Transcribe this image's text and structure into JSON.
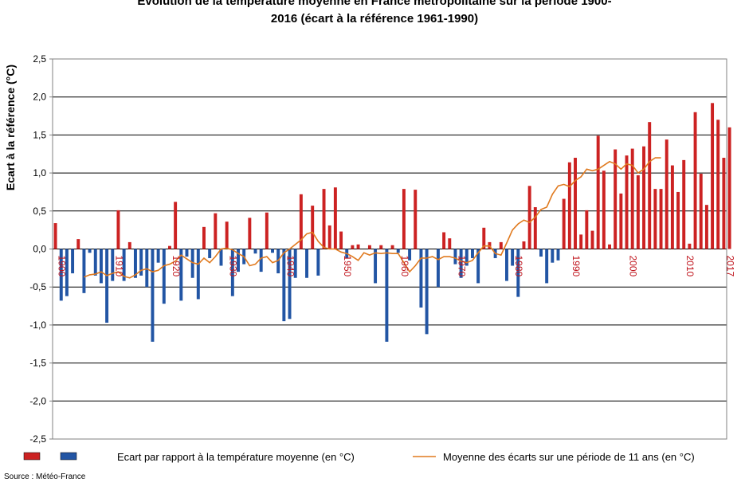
{
  "chart_data": {
    "type": "bar",
    "title_line1": "Evolution de la température moyenne en France métropolitaine  sur la période 1900-",
    "title_line2": "2016 (écart à la référence 1961-1990)",
    "ylabel": "Ecart à la référence (°C)",
    "ylim": [
      -2.5,
      2.5
    ],
    "yticks": [
      "2,5",
      "2,0",
      "1,5",
      "1,0",
      "0,5",
      "0,0",
      "-0,5",
      "-1,0",
      "-1,5",
      "-2,0",
      "-2,5"
    ],
    "ytick_values": [
      2.5,
      2.0,
      1.5,
      1.0,
      0.5,
      0.0,
      -0.5,
      -1.0,
      -1.5,
      -2.0,
      -2.5
    ],
    "grid": true,
    "x_start": 1900,
    "x_end": 2017,
    "xticks": [
      "1900",
      "1910",
      "1920",
      "1930",
      "1940",
      "1950",
      "1960",
      "1970",
      "1980",
      "1990",
      "2000",
      "2010",
      "2017"
    ],
    "xtick_years": [
      1900,
      1910,
      1920,
      1930,
      1940,
      1950,
      1960,
      1970,
      1980,
      1990,
      2000,
      2010,
      2017
    ],
    "xtick_color": "#c0141c",
    "positive_color": "#cc2222",
    "negative_color": "#2255a4",
    "line_color": "#e07a1f",
    "series": [
      {
        "name": "Ecart par rapport à la température moyenne (en °C)",
        "values": [
          0.34,
          -0.68,
          -0.62,
          -0.32,
          0.13,
          -0.58,
          -0.05,
          -0.35,
          -0.45,
          -0.97,
          -0.42,
          0.51,
          -0.42,
          0.09,
          -0.38,
          -0.35,
          -0.5,
          -1.22,
          -0.18,
          -0.72,
          0.04,
          0.62,
          -0.68,
          -0.1,
          -0.38,
          -0.66,
          0.29,
          -0.12,
          0.47,
          -0.22,
          0.36,
          -0.62,
          -0.3,
          -0.2,
          0.41,
          -0.06,
          -0.3,
          0.48,
          -0.05,
          -0.32,
          -0.95,
          -0.92,
          -0.38,
          0.72,
          -0.38,
          0.57,
          -0.35,
          0.79,
          0.31,
          0.81,
          0.23,
          -0.12,
          0.05,
          0.06,
          0.0,
          0.05,
          -0.45,
          0.05,
          -1.22,
          0.05,
          -0.05,
          0.79,
          -0.15,
          0.78,
          -0.77,
          -1.12,
          0.0,
          -0.5,
          0.22,
          0.14,
          -0.2,
          -0.38,
          -0.22,
          -0.12,
          -0.45,
          0.28,
          0.09,
          -0.12,
          0.09,
          -0.42,
          -0.22,
          -0.63,
          0.1,
          0.83,
          0.55,
          -0.1,
          -0.45,
          -0.18,
          -0.15,
          0.66,
          1.14,
          1.2,
          0.19,
          0.51,
          0.24,
          1.49,
          1.03,
          0.06,
          1.31,
          0.73,
          1.23,
          1.32,
          0.97,
          1.35,
          1.67,
          0.79,
          0.79,
          1.44,
          1.1,
          0.75,
          1.17,
          0.07,
          1.8,
          0.99,
          0.58,
          1.92,
          1.7,
          1.2,
          1.6
        ]
      },
      {
        "name": "Moyenne des écarts sur une période de 11 ans (en °C)",
        "start_year": 1905,
        "values": [
          -0.37,
          -0.34,
          -0.33,
          -0.3,
          -0.35,
          -0.32,
          -0.3,
          -0.36,
          -0.38,
          -0.34,
          -0.28,
          -0.26,
          -0.3,
          -0.28,
          -0.22,
          -0.2,
          -0.16,
          -0.08,
          -0.13,
          -0.18,
          -0.2,
          -0.12,
          -0.18,
          -0.1,
          0.0,
          0.01,
          -0.01,
          -0.06,
          -0.1,
          -0.22,
          -0.2,
          -0.12,
          -0.1,
          -0.18,
          -0.15,
          -0.05,
          0.0,
          0.06,
          0.12,
          0.2,
          0.22,
          0.1,
          0.02,
          0.0,
          0.0,
          -0.04,
          -0.06,
          -0.1,
          -0.15,
          -0.05,
          -0.08,
          -0.05,
          -0.06,
          -0.05,
          -0.06,
          -0.06,
          -0.18,
          -0.3,
          -0.22,
          -0.12,
          -0.12,
          -0.1,
          -0.14,
          -0.1,
          -0.1,
          -0.12,
          -0.16,
          -0.18,
          -0.15,
          -0.05,
          0.04,
          0.04,
          -0.06,
          -0.08,
          0.08,
          0.25,
          0.33,
          0.38,
          0.35,
          0.42,
          0.52,
          0.55,
          0.72,
          0.83,
          0.85,
          0.82,
          0.9,
          0.95,
          1.05,
          1.03,
          1.05,
          1.1,
          1.15,
          1.12,
          1.05,
          1.12,
          1.1,
          1.0,
          1.05,
          1.15,
          1.2,
          1.2
        ]
      }
    ],
    "legend": {
      "placement": "bottom",
      "bar_label": "Ecart par rapport à la température moyenne (en °C)",
      "line_label": "Moyenne des écarts sur une période de 11 ans (en °C)"
    }
  },
  "footer": {
    "source": "Source : Météo-France"
  }
}
